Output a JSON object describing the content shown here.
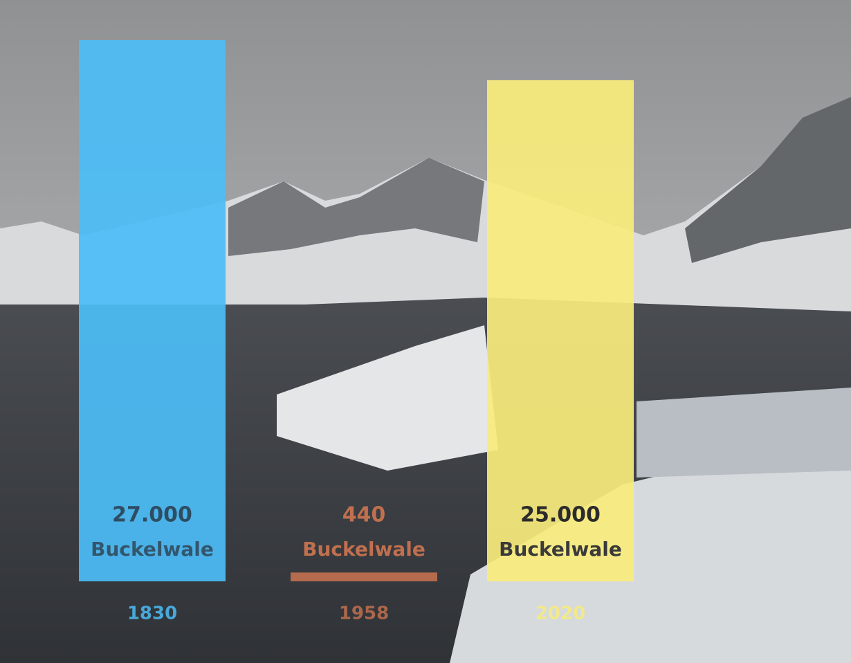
{
  "chart_data": {
    "type": "bar",
    "categories": [
      "1830",
      "1958",
      "2020"
    ],
    "values": [
      27000,
      440,
      25000
    ],
    "value_labels": [
      "27.000",
      "440",
      "25.000"
    ],
    "unit_label": "Buckelwale",
    "colors": [
      "#4cbdf6",
      "#c0704f",
      "#f8ec7c"
    ]
  }
}
